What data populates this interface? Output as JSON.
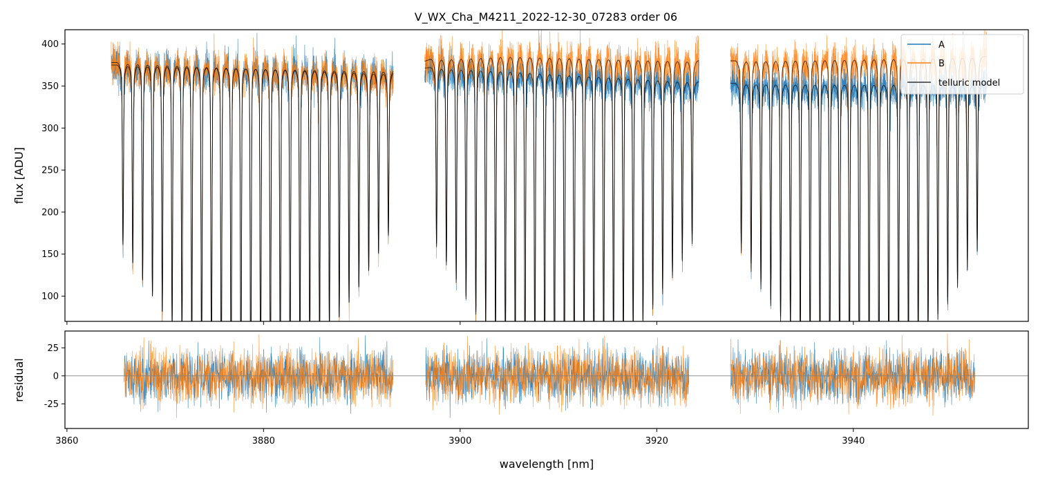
{
  "chart_data": {
    "type": "line",
    "title": "V_WX_Cha_M4211_2022-12-30_07283  order 06",
    "colors": {
      "A": "#1f77b4",
      "B": "#ff7f0e",
      "model": "#000000",
      "zero_line": "#808080"
    },
    "legend": {
      "placement": "top-right",
      "entries": [
        {
          "key": "A",
          "label": "A"
        },
        {
          "key": "B",
          "label": "B"
        },
        {
          "key": "model",
          "label": "telluric model"
        }
      ]
    },
    "top_panel": {
      "ylabel": "flux [ADU]",
      "xlim": [
        3859.8,
        3957.8
      ],
      "ylim": [
        70,
        417
      ],
      "yticks": [
        100,
        150,
        200,
        250,
        300,
        350,
        400
      ],
      "series_names": [
        "A",
        "B",
        "telluric model"
      ],
      "segments": [
        [
          3864.5,
          3893.2
        ],
        [
          3896.4,
          3924.3
        ],
        [
          3927.5,
          3953.6
        ]
      ],
      "continuum_model_A_approx": [
        {
          "x": 3865,
          "y": 375
        },
        {
          "x": 3893,
          "y": 368
        },
        {
          "x": 3897,
          "y": 372
        },
        {
          "x": 3905,
          "y": 368
        },
        {
          "x": 3924,
          "y": 355
        },
        {
          "x": 3928,
          "y": 353
        },
        {
          "x": 3953,
          "y": 352
        }
      ],
      "continuum_model_B_approx": [
        {
          "x": 3865,
          "y": 378
        },
        {
          "x": 3893,
          "y": 365
        },
        {
          "x": 3897,
          "y": 382
        },
        {
          "x": 3905,
          "y": 386
        },
        {
          "x": 3924,
          "y": 380
        },
        {
          "x": 3928,
          "y": 380
        },
        {
          "x": 3953,
          "y": 385
        }
      ],
      "absorption_line_centers_nm": [
        3865.7,
        3866.7,
        3867.7,
        3868.7,
        3869.7,
        3870.7,
        3871.7,
        3872.7,
        3873.7,
        3874.7,
        3875.7,
        3876.7,
        3877.7,
        3878.7,
        3879.7,
        3880.7,
        3881.7,
        3882.7,
        3883.7,
        3884.7,
        3885.7,
        3886.7,
        3887.7,
        3888.7,
        3889.7,
        3890.7,
        3891.7,
        3892.7,
        3897.6,
        3898.6,
        3899.6,
        3900.6,
        3901.6,
        3902.6,
        3903.6,
        3904.6,
        3905.6,
        3906.6,
        3907.6,
        3908.6,
        3909.6,
        3910.6,
        3911.6,
        3912.6,
        3913.6,
        3914.6,
        3915.6,
        3916.6,
        3917.6,
        3918.6,
        3919.6,
        3920.6,
        3921.6,
        3922.6,
        3923.6,
        3928.6,
        3929.6,
        3930.6,
        3931.6,
        3932.6,
        3933.6,
        3934.6,
        3935.6,
        3936.6,
        3937.6,
        3938.6,
        3939.6,
        3940.6,
        3941.6,
        3942.6,
        3943.6,
        3944.6,
        3945.6,
        3946.6,
        3947.6,
        3948.6,
        3949.6,
        3950.6,
        3951.6,
        3952.6
      ]
    },
    "bottom_panel": {
      "xlabel": "wavelength [nm]",
      "ylabel": "residual",
      "xlim": [
        3859.8,
        3957.8
      ],
      "ylim": [
        -47,
        40
      ],
      "yticks": [
        -25,
        0,
        25
      ],
      "xticks": [
        3860,
        3880,
        3900,
        3920,
        3940
      ],
      "zero_line": 0,
      "residual_scatter_approx": 12,
      "segments": [
        [
          3865.8,
          3893.2
        ],
        [
          3896.5,
          3923.3
        ],
        [
          3927.5,
          3952.4
        ]
      ]
    }
  }
}
